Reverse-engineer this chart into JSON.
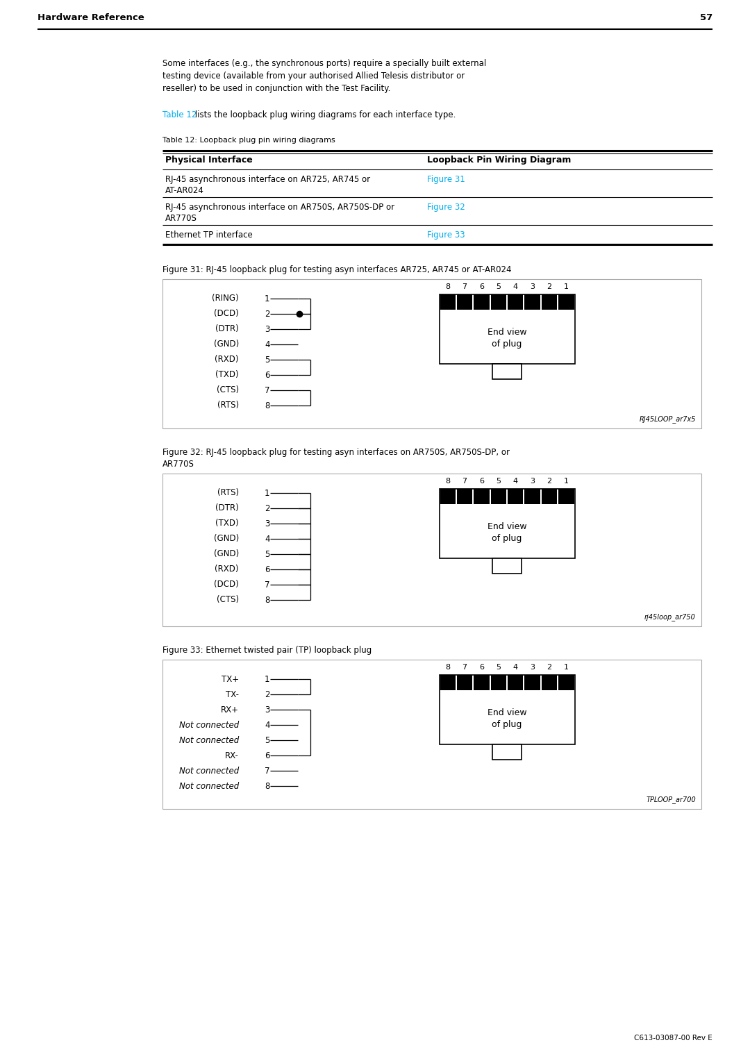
{
  "page_title": "Hardware Reference",
  "page_number": "57",
  "body_text_lines": [
    "Some interfaces (e.g., the synchronous ports) require a specially built external",
    "testing device (available from your authorised Allied Telesis distributor or",
    "reseller) to be used in conjunction with the Test Facility."
  ],
  "table12_ref": "Table 12",
  "table12_intro": " lists the loopback plug wiring diagrams for each interface type.",
  "table12_caption": "Table 12: Loopback plug pin wiring diagrams",
  "col1_header": "Physical Interface",
  "col2_header": "Loopback Pin Wiring Diagram",
  "table_row1_col1a": "RJ-45 asynchronous interface on AR725, AR745 or",
  "table_row1_col1b": "AT-AR024",
  "table_row1_col2": "Figure 31",
  "table_row2_col1a": "RJ-45 asynchronous interface on AR750S, AR750S-DP or",
  "table_row2_col1b": "AR770S",
  "table_row2_col2": "Figure 32",
  "table_row3_col1": "Ethernet TP interface",
  "table_row3_col2": "Figure 33",
  "fig31_caption": "Figure 31: RJ-45 loopback plug for testing asyn interfaces AR725, AR745 or AT-AR024",
  "fig31_pins": [
    "(RING)",
    "(DCD)",
    "(DTR)",
    "(GND)",
    "(RXD)",
    "(TXD)",
    "(CTS)",
    "(RTS)"
  ],
  "fig31_nums": [
    "1",
    "2",
    "3",
    "4",
    "5",
    "6",
    "7",
    "8"
  ],
  "fig31_label": "RJ45LOOP_ar7x5",
  "fig32_caption_line1": "Figure 32: RJ-45 loopback plug for testing asyn interfaces on AR750S, AR750S-DP, or",
  "fig32_caption_line2": "AR770S",
  "fig32_pins": [
    "(RTS)",
    "(DTR)",
    "(TXD)",
    "(GND)",
    "(GND)",
    "(RXD)",
    "(DCD)",
    "(CTS)"
  ],
  "fig32_nums": [
    "1",
    "2",
    "3",
    "4",
    "5",
    "6",
    "7",
    "8"
  ],
  "fig32_label": "rj45loop_ar750",
  "fig33_caption": "Figure 33: Ethernet twisted pair (TP) loopback plug",
  "fig33_pins": [
    "TX+",
    "TX-",
    "RX+",
    "Not connected",
    "Not connected",
    "RX-",
    "Not connected",
    "Not connected"
  ],
  "fig33_italic": [
    false,
    false,
    false,
    true,
    true,
    false,
    true,
    true
  ],
  "fig33_nums": [
    "1",
    "2",
    "3",
    "4",
    "5",
    "6",
    "7",
    "8"
  ],
  "fig33_label": "TPLOOP_ar700",
  "footer": "C613-03087-00 Rev E",
  "cyan": "#00AEEF",
  "black": "#000000",
  "white": "#FFFFFF",
  "gray_border": "#AAAAAA",
  "nums_above_plug": [
    "8",
    "7",
    "6",
    "5",
    "4",
    "3",
    "2",
    "1"
  ]
}
